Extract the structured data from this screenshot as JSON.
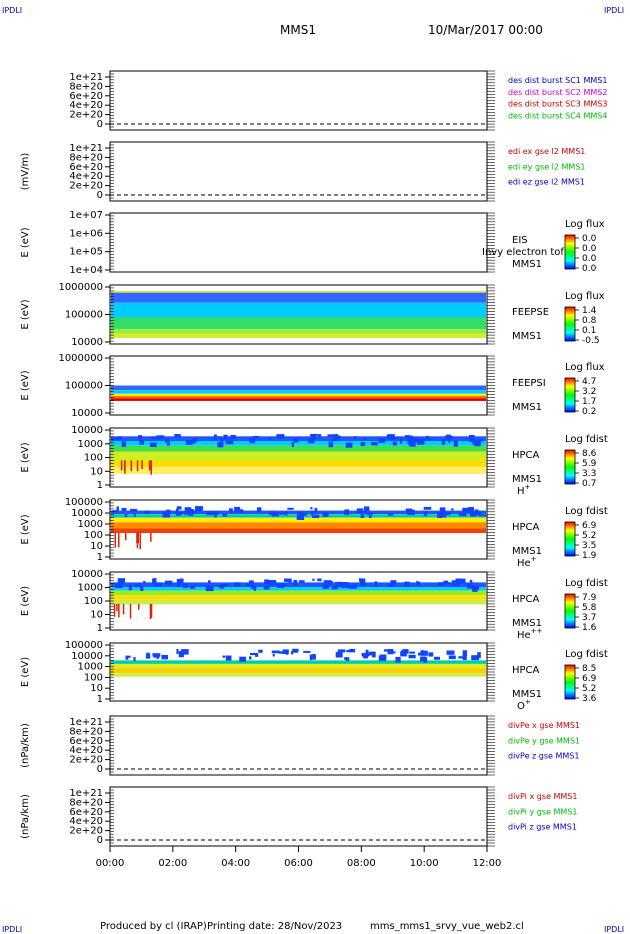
{
  "corner_labels": [
    "IPDLI",
    "IPDLI",
    "IPDLI",
    "IPDLI"
  ],
  "header": {
    "spacecraft": "MMS1",
    "date": "10/Mar/2017 00:00"
  },
  "footer": {
    "producer": "Produced by cl (IRAP)",
    "printing_date": "Printing date: 28/Nov/2023",
    "filename": "mms_mms1_srvy_vue_web2.cl"
  },
  "x_ticks": [
    "00:00",
    "02:00",
    "04:00",
    "06:00",
    "08:00",
    "10:00",
    "12:00"
  ],
  "colors": {
    "accent_blue": "#0000cc",
    "ex": "#cc0000",
    "ey": "#00bb00",
    "ez": "#0000cc",
    "magenta": "#cc00cc"
  },
  "chart_data": [
    {
      "type": "line",
      "ylabel": "",
      "y_ticks": [
        "1e+21",
        "8e+20",
        "6e+20",
        "4e+20",
        "2e+20",
        "0"
      ],
      "ylim": [
        0,
        1e+21
      ],
      "legend": [
        {
          "text": "des dist burst SC1 MMS1",
          "color": "#0000cc"
        },
        {
          "text": "des dist burst SC2 MMS2",
          "color": "#cc00cc"
        },
        {
          "text": "des dist burst SC3 MMS3",
          "color": "#cc0000"
        },
        {
          "text": "des dist burst SC4 MMS4",
          "color": "#00bb00"
        }
      ]
    },
    {
      "type": "line",
      "ylabel": "(mV/m)",
      "y_ticks": [
        "1e+21",
        "8e+20",
        "6e+20",
        "4e+20",
        "2e+20",
        "0"
      ],
      "ylim": [
        0,
        1e+21
      ],
      "legend": [
        {
          "text": "edi ex gse l2 MMS1",
          "color": "#cc0000"
        },
        {
          "text": "edi ey gse l2 MMS1",
          "color": "#00bb00"
        },
        {
          "text": "edi ez gse l2 MMS1",
          "color": "#0000cc"
        }
      ]
    },
    {
      "type": "heatmap",
      "ylabel": "E (eV)",
      "y_ticks": [
        "1e+07",
        "1e+06",
        "1e+05",
        "1e+04"
      ],
      "scale": "log",
      "right_labels": [
        "EIS",
        "MMS1"
      ],
      "overlay_text": "Invy electron tof",
      "colorbar_title": "Log flux",
      "colorbar_ticks": [
        "0.0",
        "0.0",
        "0.0",
        "0.0"
      ]
    },
    {
      "type": "heatmap",
      "ylabel": "E (eV)",
      "y_ticks": [
        "1000000",
        "100000",
        "10000"
      ],
      "scale": "log",
      "right_labels": [
        "FEEPSE",
        "MMS1"
      ],
      "colorbar_title": "Log flux",
      "colorbar_ticks": [
        "1.4",
        "0.8",
        "0.1",
        "-0.5"
      ]
    },
    {
      "type": "heatmap",
      "ylabel": "E (eV)",
      "y_ticks": [
        "1000000",
        "100000",
        "10000"
      ],
      "scale": "log",
      "right_labels": [
        "FEEPSI",
        "MMS1"
      ],
      "colorbar_title": "Log flux",
      "colorbar_ticks": [
        "4.7",
        "3.2",
        "1.7",
        "0.2"
      ]
    },
    {
      "type": "heatmap",
      "ylabel": "E (eV)",
      "y_ticks": [
        "10000",
        "1000",
        "100",
        "10",
        "1"
      ],
      "scale": "log",
      "right_labels": [
        "HPCA",
        "MMS1"
      ],
      "species": "H",
      "species_sup": "+",
      "colorbar_title": "Log fdist",
      "colorbar_ticks": [
        "8.6",
        "5.9",
        "3.3",
        "0.7"
      ]
    },
    {
      "type": "heatmap",
      "ylabel": "E (eV)",
      "y_ticks": [
        "100000",
        "10000",
        "1000",
        "100",
        "10",
        "1"
      ],
      "scale": "log",
      "right_labels": [
        "HPCA",
        "MMS1"
      ],
      "species": "He",
      "species_sup": "+",
      "colorbar_title": "Log fdist",
      "colorbar_ticks": [
        "6.9",
        "5.2",
        "3.5",
        "1.9"
      ]
    },
    {
      "type": "heatmap",
      "ylabel": "E (eV)",
      "y_ticks": [
        "10000",
        "1000",
        "100",
        "10",
        "1"
      ],
      "scale": "log",
      "right_labels": [
        "HPCA",
        "MMS1"
      ],
      "species": "He",
      "species_sup": "++",
      "colorbar_title": "Log fdist",
      "colorbar_ticks": [
        "7.9",
        "5.8",
        "3.7",
        "1.6"
      ]
    },
    {
      "type": "heatmap",
      "ylabel": "E (eV)",
      "y_ticks": [
        "100000",
        "10000",
        "1000",
        "100",
        "10",
        "1"
      ],
      "scale": "log",
      "right_labels": [
        "HPCA",
        "MMS1"
      ],
      "species": "O",
      "species_sup": "+",
      "colorbar_title": "Log fdist",
      "colorbar_ticks": [
        "8.5",
        "6.9",
        "5.2",
        "3.6"
      ]
    },
    {
      "type": "line",
      "ylabel": "(nPa/km)",
      "y_ticks": [
        "1e+21",
        "8e+20",
        "6e+20",
        "4e+20",
        "2e+20",
        "0"
      ],
      "ylim": [
        0,
        1e+21
      ],
      "legend": [
        {
          "text": "divPe x gse MMS1",
          "color": "#cc0000"
        },
        {
          "text": "divPe y gse MMS1",
          "color": "#00bb00"
        },
        {
          "text": "divPe z gse MMS1",
          "color": "#0000cc"
        }
      ]
    },
    {
      "type": "line",
      "ylabel": "(nPa/km)",
      "y_ticks": [
        "1e+21",
        "8e+20",
        "6e+20",
        "4e+20",
        "2e+20",
        "0"
      ],
      "ylim": [
        0,
        1e+21
      ],
      "legend": [
        {
          "text": "divPi x gse MMS1",
          "color": "#cc0000"
        },
        {
          "text": "divPi y gse MMS1",
          "color": "#00bb00"
        },
        {
          "text": "divPi z gse MMS1",
          "color": "#0000cc"
        }
      ]
    }
  ]
}
